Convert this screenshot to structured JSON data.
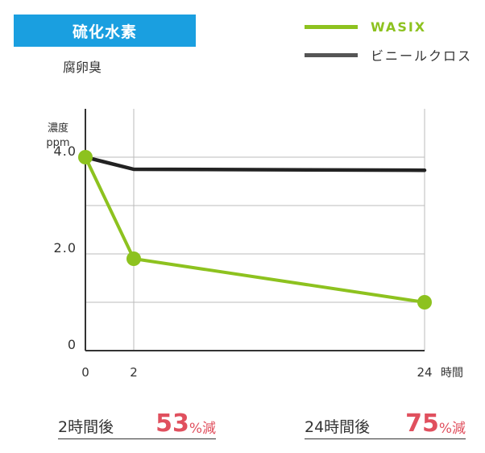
{
  "header": {
    "title": "硫化水素",
    "subtitle": "腐卵臭"
  },
  "legend": [
    {
      "label": "WASIX",
      "color": "#8dc21f"
    },
    {
      "label": "ビニールクロス",
      "color": "#555555"
    }
  ],
  "chart_data": {
    "type": "line",
    "ylabel": "濃度",
    "yunit": "ppm",
    "xunit": "時間",
    "x_ticks": [
      "0",
      "2",
      "24"
    ],
    "y_ticks": [
      "4.0",
      "2.0",
      "0"
    ],
    "ylim": [
      0,
      4.0
    ],
    "y_gridlines": [
      1.0,
      2.0,
      3.0,
      4.0
    ],
    "series": [
      {
        "name": "WASIX",
        "color": "#8dc21f",
        "x": [
          0,
          2,
          24
        ],
        "y": [
          4.0,
          1.9,
          1.0
        ],
        "markers": true
      },
      {
        "name": "ビニールクロス",
        "color": "#222222",
        "x": [
          0,
          2,
          24
        ],
        "y": [
          4.0,
          3.75,
          3.73
        ],
        "markers": false
      }
    ]
  },
  "summary": [
    {
      "label": "2時間後",
      "value": "53",
      "unit": "%減"
    },
    {
      "label": "24時間後",
      "value": "75",
      "unit": "%減"
    }
  ]
}
